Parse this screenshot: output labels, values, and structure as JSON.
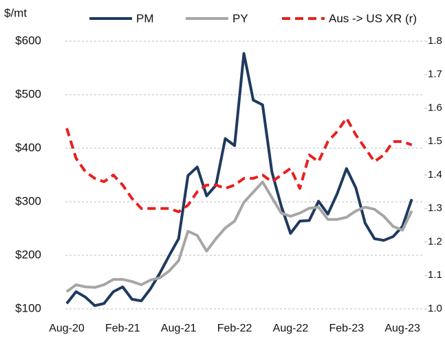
{
  "chart_data": {
    "type": "line",
    "y_label": "$/mt",
    "categories": [
      "Aug-20",
      null,
      null,
      null,
      null,
      null,
      "Feb-21",
      null,
      null,
      null,
      null,
      null,
      "Aug-21",
      null,
      null,
      null,
      null,
      null,
      "Feb-22",
      null,
      null,
      null,
      null,
      null,
      "Aug-22",
      null,
      null,
      null,
      null,
      null,
      "Feb-23",
      null,
      null,
      null,
      null,
      null,
      "Aug-23",
      null
    ],
    "series": [
      {
        "name": "PM",
        "color": "#1f3a5f",
        "dash": false,
        "values": [
          110,
          132,
          122,
          106,
          110,
          132,
          141,
          118,
          115,
          138,
          167,
          200,
          231,
          349,
          365,
          311,
          331,
          418,
          405,
          577,
          490,
          481,
          356,
          292,
          241,
          264,
          265,
          301,
          277,
          315,
          362,
          326,
          260,
          231,
          228,
          235,
          254,
          305
        ]
      },
      {
        "name": "PY",
        "color": "#a6a6a6",
        "dash": false,
        "values": [
          132,
          145,
          141,
          140,
          145,
          155,
          155,
          151,
          145,
          154,
          158,
          171,
          190,
          245,
          237,
          208,
          231,
          251,
          264,
          299,
          318,
          337,
          308,
          279,
          273,
          279,
          288,
          290,
          267,
          267,
          271,
          283,
          290,
          286,
          273,
          254,
          247,
          283
        ]
      },
      {
        "name": "Aus -> US XR (r)",
        "color": "#e8201f",
        "dash": true,
        "axis": "y2",
        "values": [
          1.54,
          1.45,
          1.41,
          1.39,
          1.38,
          1.4,
          1.37,
          1.33,
          1.3,
          1.3,
          1.3,
          1.3,
          1.29,
          1.31,
          1.35,
          1.37,
          1.37,
          1.36,
          1.37,
          1.39,
          1.39,
          1.4,
          1.38,
          1.4,
          1.42,
          1.36,
          1.46,
          1.44,
          1.5,
          1.53,
          1.57,
          1.52,
          1.48,
          1.44,
          1.46,
          1.5,
          1.5,
          1.49
        ]
      }
    ],
    "ylim": [
      100,
      600
    ],
    "yticks": [
      {
        "value": 100,
        "label": "$100"
      },
      {
        "value": 200,
        "label": "$200"
      },
      {
        "value": 300,
        "label": "$300"
      },
      {
        "value": 400,
        "label": "$400"
      },
      {
        "value": 500,
        "label": "$500"
      },
      {
        "value": 600,
        "label": "$600"
      }
    ],
    "y2lim": [
      1.0,
      1.8
    ],
    "y2ticks": [
      {
        "value": 1,
        "label": "1.0"
      },
      1.1,
      1.2,
      1.3,
      1.4,
      1.5,
      1.6,
      1.7,
      1.8
    ],
    "grid": true,
    "legend": "top"
  }
}
